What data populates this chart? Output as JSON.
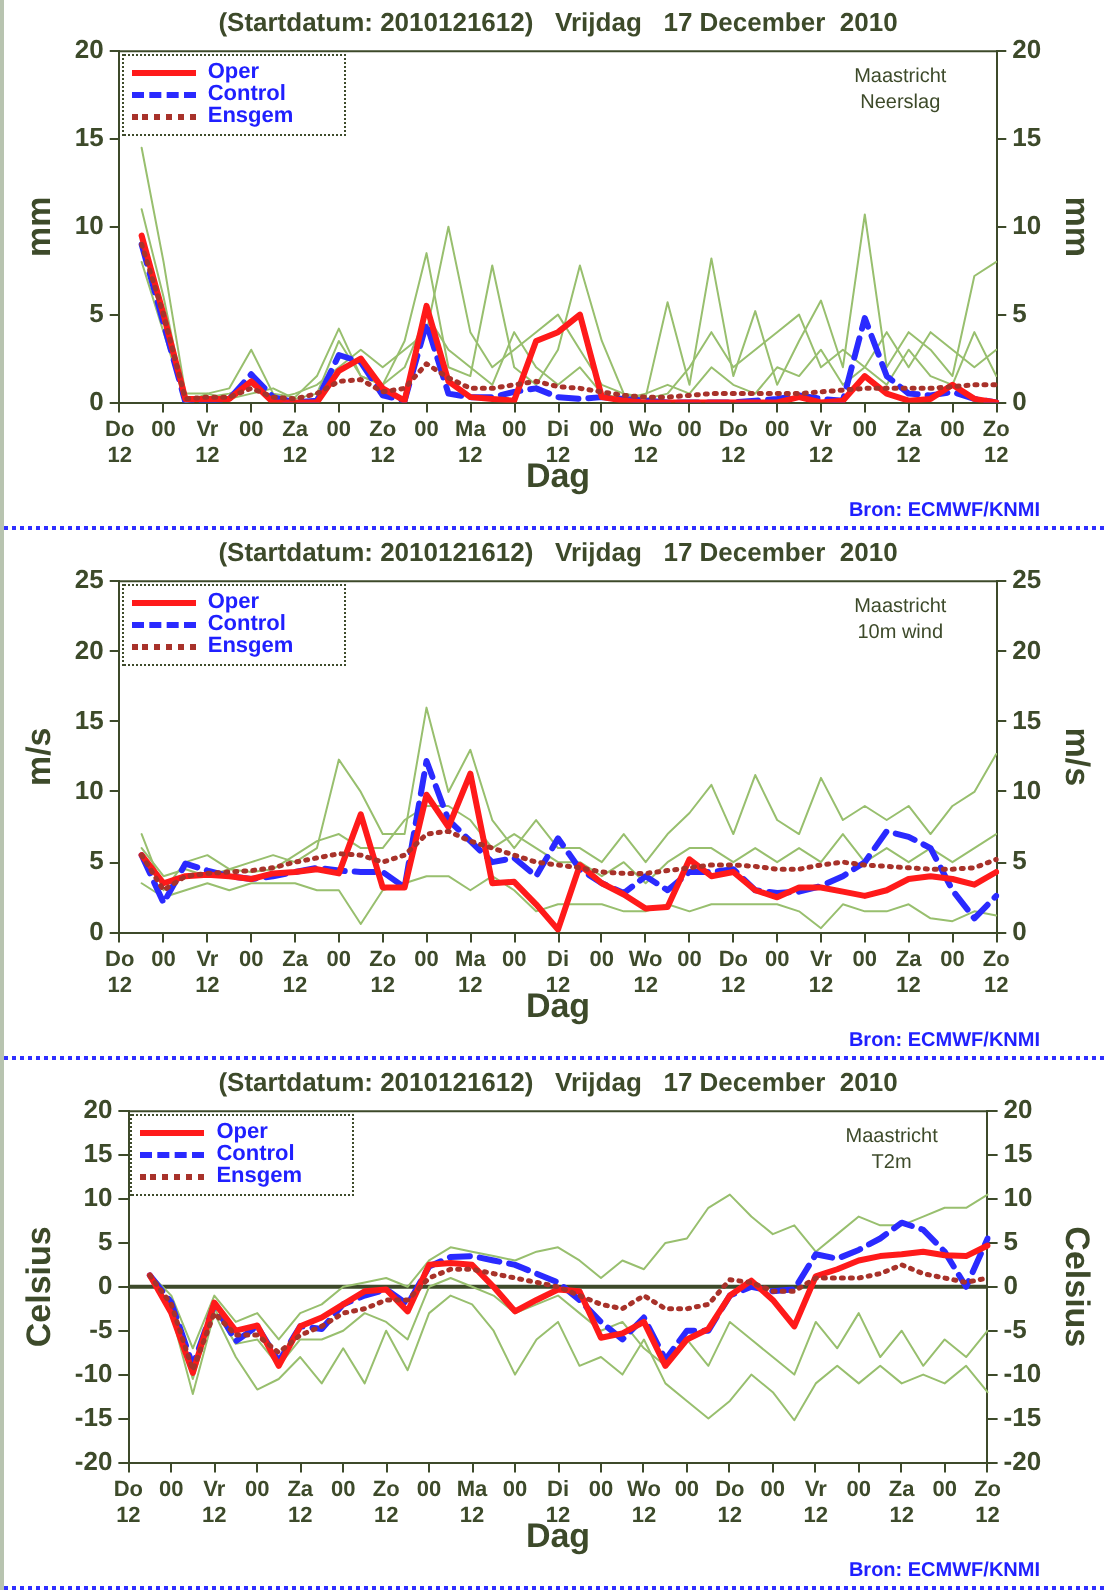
{
  "chart_data": [
    {
      "type": "line",
      "title": "(Startdatum: 2010121612)   Vrijdag   17 December  2010",
      "xlabel": "Dag",
      "ylabel": "mm",
      "y2label": "mm",
      "legend": "top left",
      "grid": false,
      "marker": "none",
      "annotations": [
        "Maastricht\nNeerslag",
        "Bron: ECMWF/KNMI"
      ],
      "categories": [
        "Do\n12",
        null,
        "00",
        null,
        "Vr\n12",
        null,
        "00",
        null,
        "Za\n12",
        null,
        "00",
        null,
        "Zo\n12",
        null,
        "00",
        null,
        "Ma\n12",
        null,
        "00",
        null,
        "Di\n12",
        null,
        "00",
        null,
        "Wo\n12",
        null,
        "00",
        null,
        "Do\n12",
        null,
        "00",
        null,
        "Vr\n12",
        null,
        "00",
        null,
        "Za\n12",
        null,
        "00",
        null,
        "Zo\n12"
      ],
      "ylim": [
        0,
        20
      ],
      "yticks": [
        0,
        5,
        10,
        15,
        20
      ],
      "y2lim": [
        0,
        20
      ],
      "y2ticks": [
        0,
        5,
        10,
        15,
        20
      ],
      "series": [
        {
          "name": "Oper",
          "color": "#ff1a1a",
          "line_style": "solid",
          "values": [
            null,
            9.5,
            5,
            0.2,
            0.2,
            0.2,
            1.2,
            0,
            0,
            0,
            1.8,
            2.5,
            0.8,
            0.1,
            5.5,
            1.2,
            0.3,
            0.2,
            0.1,
            3.5,
            4,
            5,
            0.3,
            0.1,
            0,
            0,
            0,
            0,
            0,
            0,
            0,
            0.3,
            0,
            0.1,
            1.5,
            0.5,
            0.1,
            0.2,
            1,
            0.2,
            0
          ]
        },
        {
          "name": "Control",
          "color": "#2a2aff",
          "line_style": "dashed",
          "values": [
            null,
            9,
            4.5,
            0,
            0.1,
            0.2,
            1.6,
            0.3,
            0,
            0.1,
            2.7,
            2.3,
            0.4,
            0.1,
            4.5,
            0.5,
            0.3,
            0.3,
            0.6,
            0.8,
            0.3,
            0.2,
            0.3,
            0.2,
            0.1,
            0,
            0,
            0,
            0,
            0.1,
            0.2,
            0.4,
            0.2,
            0.1,
            4.8,
            1.5,
            0.5,
            0.4,
            0.6,
            0.2,
            0
          ]
        },
        {
          "name": "Ensgem",
          "color": "#a8322a",
          "line_style": "dotted",
          "values": [
            null,
            9,
            5,
            0.2,
            0.3,
            0.3,
            0.8,
            0.3,
            0.2,
            0.5,
            1.2,
            1.3,
            0.6,
            0.8,
            2.2,
            1.4,
            0.8,
            0.8,
            1,
            1.2,
            0.9,
            0.8,
            0.6,
            0.4,
            0.3,
            0.3,
            0.4,
            0.5,
            0.5,
            0.5,
            0.5,
            0.5,
            0.6,
            0.7,
            0.8,
            0.8,
            0.8,
            0.8,
            0.9,
            1,
            1
          ]
        },
        {
          "color": "#98bf6e",
          "line_style": "solid",
          "values": [
            null,
            14.5,
            8,
            0.5,
            0.5,
            0.8,
            3,
            0.5,
            0.3,
            1.5,
            4.2,
            1.5,
            1,
            3.5,
            8.5,
            2,
            1.5,
            7.8,
            2,
            1,
            3,
            7.8,
            3.5,
            0.5,
            0.3,
            5.7,
            1,
            8.2,
            1.5,
            5.2,
            1,
            3.5,
            5.8,
            2,
            10.7,
            2,
            4,
            3,
            1.5,
            7.2,
            8
          ]
        },
        {
          "color": "#98bf6e",
          "line_style": "solid",
          "values": [
            null,
            11,
            6,
            0,
            0.3,
            0.5,
            1,
            0.2,
            0.5,
            1,
            2,
            3,
            2,
            3,
            4,
            10,
            4,
            2,
            3,
            4,
            5,
            3,
            1,
            0.5,
            0.2,
            0.5,
            2,
            4,
            2,
            3,
            4,
            5,
            2,
            3,
            2,
            4,
            2,
            4,
            3,
            2,
            3
          ]
        },
        {
          "color": "#98bf6e",
          "line_style": "solid",
          "values": [
            null,
            8,
            4,
            0,
            0.5,
            0.2,
            0.5,
            0.8,
            0.2,
            0.5,
            3.5,
            1.5,
            1,
            2,
            5,
            3,
            2,
            1,
            4,
            2,
            1,
            2,
            0.5,
            0.2,
            0.5,
            1,
            0.5,
            2,
            1,
            0.5,
            2,
            1.5,
            3,
            1,
            2,
            1,
            3,
            1.5,
            1,
            4,
            1.5
          ]
        }
      ]
    },
    {
      "type": "line",
      "title": "(Startdatum: 2010121612)   Vrijdag   17 December  2010",
      "xlabel": "Dag",
      "ylabel": "m/s",
      "y2label": "m/s",
      "legend": "top left",
      "grid": false,
      "marker": "none",
      "annotations": [
        "Maastricht\n10m wind",
        "Bron: ECMWF/KNMI"
      ],
      "categories": [
        "Do\n12",
        null,
        "00",
        null,
        "Vr\n12",
        null,
        "00",
        null,
        "Za\n12",
        null,
        "00",
        null,
        "Zo\n12",
        null,
        "00",
        null,
        "Ma\n12",
        null,
        "00",
        null,
        "Di\n12",
        null,
        "00",
        null,
        "Wo\n12",
        null,
        "00",
        null,
        "Do\n12",
        null,
        "00",
        null,
        "Vr\n12",
        null,
        "00",
        null,
        "Za\n12",
        null,
        "00",
        null,
        "Zo\n12"
      ],
      "ylim": [
        0,
        25
      ],
      "yticks": [
        0,
        5,
        10,
        15,
        20,
        25
      ],
      "y2lim": [
        0,
        25
      ],
      "y2ticks": [
        0,
        5,
        10,
        15,
        20,
        25
      ],
      "series": [
        {
          "name": "Oper",
          "color": "#ff1a1a",
          "line_style": "solid",
          "values": [
            null,
            5.5,
            3.5,
            4,
            4.1,
            4,
            3.8,
            4.2,
            4.3,
            4.5,
            4.2,
            8.4,
            3.2,
            3.2,
            9.8,
            7.5,
            11.3,
            3.5,
            3.6,
            2,
            0.2,
            4.8,
            3.5,
            2.7,
            1.7,
            1.8,
            5.2,
            4,
            4.3,
            3,
            2.5,
            3.2,
            3.2,
            2.9,
            2.6,
            3,
            3.8,
            4,
            3.8,
            3.4,
            4.3
          ]
        },
        {
          "name": "Control",
          "color": "#2a2aff",
          "line_style": "dashed",
          "values": [
            null,
            5.5,
            2.1,
            4.9,
            4.4,
            4,
            3.8,
            4,
            4.3,
            4.6,
            4.4,
            4.3,
            4.3,
            3.2,
            12.2,
            8,
            6.5,
            5,
            5.3,
            4,
            6.7,
            4.5,
            3.5,
            2.8,
            4,
            3,
            4.3,
            4.3,
            4.5,
            3,
            2.8,
            2.9,
            3.3,
            4,
            5,
            7.2,
            6.8,
            6,
            3,
            1,
            2.6
          ]
        },
        {
          "name": "Ensgem",
          "color": "#a8322a",
          "line_style": "dotted",
          "values": [
            null,
            5.5,
            3,
            4,
            4.2,
            4.3,
            4.4,
            4.6,
            5,
            5.3,
            5.6,
            5.5,
            5,
            5.5,
            7,
            7.2,
            6.5,
            6,
            5.5,
            5,
            4.8,
            4.6,
            4.3,
            4.2,
            4.2,
            4.4,
            4.6,
            4.8,
            4.8,
            4.7,
            4.5,
            4.5,
            4.8,
            5,
            4.8,
            4.7,
            4.6,
            4.5,
            4.5,
            4.6,
            5.2
          ]
        },
        {
          "color": "#98bf6e",
          "line_style": "solid",
          "values": [
            null,
            7,
            3,
            5,
            5.5,
            4.5,
            5,
            5.5,
            5,
            6,
            12.3,
            10,
            7,
            7,
            16,
            10,
            13,
            8,
            6,
            8,
            6,
            6,
            5,
            7,
            5,
            7,
            8.5,
            10.5,
            7,
            11.2,
            8,
            7,
            11,
            8,
            9,
            8,
            9,
            7,
            9,
            10,
            12.7
          ]
        },
        {
          "color": "#98bf6e",
          "line_style": "solid",
          "values": [
            null,
            3.5,
            2.5,
            3,
            3.5,
            3,
            3.5,
            3.5,
            3.5,
            3,
            3,
            0.6,
            3,
            3.5,
            4,
            4,
            3,
            4,
            3,
            1.5,
            2,
            2,
            2,
            1.5,
            1.5,
            2,
            1.5,
            2,
            2,
            2,
            2,
            1.5,
            0.3,
            2,
            1.5,
            1.5,
            2,
            1,
            0.8,
            1.5,
            1.2
          ]
        },
        {
          "color": "#98bf6e",
          "line_style": "solid",
          "values": [
            null,
            6,
            4,
            4.5,
            4,
            4.5,
            4.3,
            4.5,
            5.5,
            6.5,
            7,
            6,
            6,
            8,
            9,
            9,
            8,
            6,
            7,
            6,
            5,
            5,
            4,
            5,
            3.5,
            5,
            6,
            6,
            5,
            6,
            5,
            6,
            5,
            7,
            5,
            6,
            5,
            6,
            5,
            6,
            7
          ]
        }
      ]
    },
    {
      "type": "line",
      "title": "(Startdatum: 2010121612)   Vrijdag   17 December  2010",
      "xlabel": "Dag",
      "ylabel": "Celsius",
      "y2label": "Celsius",
      "legend": "top left",
      "grid": false,
      "marker": "none",
      "annotations": [
        "Maastricht\nT2m",
        "Bron: ECMWF/KNMI"
      ],
      "ref_lines": [
        {
          "axis": "y",
          "value": 0,
          "color": "#3d4a2a"
        }
      ],
      "categories": [
        "Do\n12",
        null,
        "00",
        null,
        "Vr\n12",
        null,
        "00",
        null,
        "Za\n12",
        null,
        "00",
        null,
        "Zo\n12",
        null,
        "00",
        null,
        "Ma\n12",
        null,
        "00",
        null,
        "Di\n12",
        null,
        "00",
        null,
        "Wo\n12",
        null,
        "00",
        null,
        "Do\n12",
        null,
        "00",
        null,
        "Vr\n12",
        null,
        "00",
        null,
        "Za\n12",
        null,
        "00",
        null,
        "Zo\n12"
      ],
      "ylim": [
        -20,
        20
      ],
      "yticks": [
        -20,
        -15,
        -10,
        -5,
        0,
        5,
        10,
        15,
        20
      ],
      "y2lim": [
        -20,
        20
      ],
      "y2ticks": [
        -20,
        -15,
        -10,
        -5,
        0,
        5,
        10,
        15,
        20
      ],
      "series": [
        {
          "name": "Oper",
          "color": "#ff1a1a",
          "line_style": "solid",
          "values": [
            null,
            1.3,
            -3,
            -9.8,
            -1.8,
            -5,
            -4.4,
            -9,
            -4.5,
            -3.5,
            -2,
            -0.5,
            -0.3,
            -2.8,
            2.5,
            2.7,
            2.5,
            0,
            -2.8,
            -1.5,
            -0.3,
            -0.5,
            -5.8,
            -5.3,
            -4,
            -9,
            -6,
            -4.8,
            -1,
            0.7,
            -1.5,
            -4.5,
            1.2,
            2,
            3,
            3.5,
            3.7,
            4,
            3.6,
            3.5,
            4.7
          ]
        },
        {
          "name": "Control",
          "color": "#2a2aff",
          "line_style": "dashed",
          "values": [
            null,
            1.3,
            -1.8,
            -9,
            -2,
            -6.2,
            -4.5,
            -8.5,
            -4.5,
            -4.8,
            -2,
            -1,
            -0.3,
            -2,
            2.3,
            3.4,
            3.5,
            3,
            2.5,
            1.5,
            0.5,
            -1.5,
            -4,
            -6,
            -3.5,
            -8.3,
            -5,
            -5,
            -1,
            0,
            -0.5,
            -0.3,
            3.7,
            3.2,
            4.2,
            5.5,
            7.3,
            6.5,
            4,
            0,
            5.5
          ]
        },
        {
          "name": "Ensgem",
          "color": "#a8322a",
          "line_style": "dotted",
          "values": [
            null,
            1.3,
            -2,
            -9.5,
            -3,
            -5.5,
            -5.5,
            -7.5,
            -5.5,
            -4.5,
            -3,
            -2.5,
            -1.5,
            -1.5,
            1,
            2,
            2,
            1.5,
            1,
            0.5,
            0,
            -1,
            -2,
            -2.5,
            -1,
            -2.5,
            -2.5,
            -2,
            0.8,
            0.5,
            -0.5,
            -0.5,
            1,
            1,
            1,
            1.5,
            2.5,
            1.5,
            1,
            0.5,
            1
          ]
        },
        {
          "color": "#98bf6e",
          "line_style": "solid",
          "values": [
            null,
            1.5,
            -1,
            -7,
            -1,
            -4,
            -3,
            -6,
            -3,
            -2,
            0,
            0.5,
            1,
            0,
            3,
            4.5,
            4,
            3.5,
            3,
            4,
            4.5,
            3,
            1,
            3,
            2,
            5,
            5.5,
            9,
            10.5,
            8,
            6,
            7,
            4,
            6,
            8,
            7,
            7,
            8,
            9,
            9,
            10.5
          ]
        },
        {
          "color": "#98bf6e",
          "line_style": "solid",
          "values": [
            null,
            1,
            -3,
            -12.2,
            -3,
            -8,
            -11.7,
            -10.5,
            -8,
            -11,
            -7,
            -11,
            -5,
            -9.5,
            -3,
            -1,
            -2,
            -5,
            -10,
            -6,
            -4,
            -9,
            -8,
            -10,
            -6,
            -11,
            -13,
            -15,
            -13,
            -10,
            -12,
            -15.2,
            -11,
            -9,
            -11,
            -9,
            -11,
            -10,
            -11,
            -9,
            -12
          ]
        },
        {
          "color": "#98bf6e",
          "line_style": "solid",
          "values": [
            null,
            1.2,
            -2.5,
            -10.5,
            -2.5,
            -6.5,
            -6,
            -9,
            -6,
            -6,
            -5,
            -3,
            -4,
            -6,
            0,
            1,
            0,
            -1,
            -3,
            -2,
            -1,
            -3,
            -5,
            -4,
            -7,
            -9,
            -6,
            -9,
            -4,
            -6,
            -8,
            -10,
            -4,
            -7,
            -3,
            -8,
            -5,
            -9,
            -6,
            -8,
            -5
          ]
        }
      ]
    }
  ]
}
